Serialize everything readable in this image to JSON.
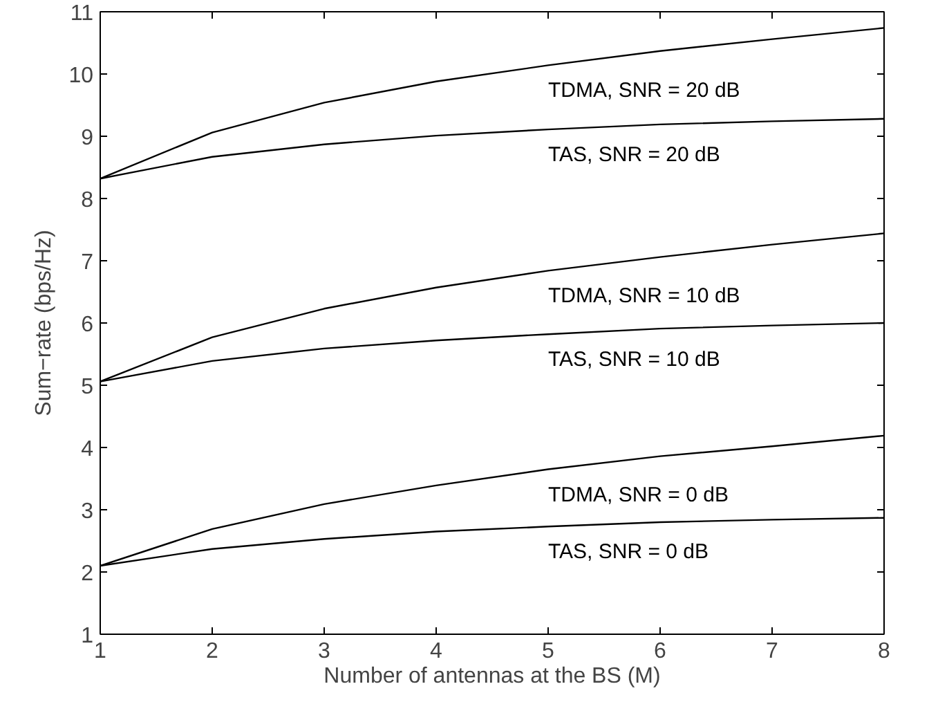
{
  "chart_data": {
    "type": "line",
    "xlabel": "Number of antennas at the BS (M)",
    "ylabel": "Sum−rate (bps/Hz)",
    "x": [
      1,
      2,
      3,
      4,
      5,
      6,
      7,
      8
    ],
    "series": [
      {
        "name": "TDMA, SNR = 20 dB",
        "color": "#000000",
        "values": [
          8.32,
          9.06,
          9.54,
          9.88,
          10.14,
          10.37,
          10.56,
          10.74
        ]
      },
      {
        "name": "TAS, SNR = 20 dB",
        "color": "#000000",
        "values": [
          8.32,
          8.67,
          8.87,
          9.01,
          9.11,
          9.19,
          9.24,
          9.28
        ]
      },
      {
        "name": "TDMA, SNR = 10 dB",
        "color": "#000000",
        "values": [
          5.06,
          5.77,
          6.23,
          6.57,
          6.84,
          7.06,
          7.26,
          7.44
        ]
      },
      {
        "name": "TAS, SNR = 10 dB",
        "color": "#000000",
        "values": [
          5.06,
          5.39,
          5.59,
          5.72,
          5.82,
          5.91,
          5.96,
          6.0
        ]
      },
      {
        "name": "TDMA, SNR = 0 dB",
        "color": "#000000",
        "values": [
          2.1,
          2.69,
          3.09,
          3.39,
          3.65,
          3.86,
          4.02,
          4.19
        ]
      },
      {
        "name": "TAS, SNR = 0 dB",
        "color": "#000000",
        "values": [
          2.1,
          2.37,
          2.53,
          2.65,
          2.73,
          2.8,
          2.84,
          2.87
        ]
      }
    ],
    "xlim": [
      1,
      8
    ],
    "ylim": [
      1,
      11
    ],
    "xticks": [
      1,
      2,
      3,
      4,
      5,
      6,
      7,
      8
    ],
    "yticks": [
      1,
      2,
      3,
      4,
      5,
      6,
      7,
      8,
      9,
      10,
      11
    ],
    "grid": false,
    "legend": false,
    "marker": "none",
    "line_style": "solid"
  }
}
